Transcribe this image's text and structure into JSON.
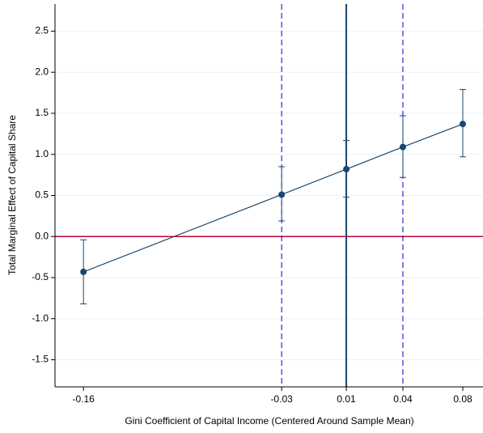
{
  "chart_data": {
    "type": "errorline",
    "xlabel": "Gini Coefficient of Capital Income (Centered Around Sample Mean)",
    "ylabel": "Total Marginal Effect of Capital Share",
    "series": [
      {
        "color": "#1a476f",
        "x": [
          -0.16,
          -0.0346,
          0.0063,
          0.0421,
          0.08
        ],
        "values": [
          -0.43,
          0.51,
          0.82,
          1.09,
          1.37
        ],
        "lower": [
          -0.82,
          0.19,
          0.48,
          0.72,
          0.97
        ],
        "upper": [
          -0.04,
          0.85,
          1.17,
          1.47,
          1.79
        ]
      }
    ],
    "xlim": [
      -0.178,
      0.0928
    ],
    "ylim": [
      -1.83,
      2.83
    ],
    "xticks": [
      -0.16,
      {
        "value": -0.0346,
        "label": "-0.03"
      },
      {
        "value": 0.0063,
        "label": "0.01"
      },
      {
        "value": 0.0421,
        "label": "0.04"
      },
      0.08
    ],
    "yticks": [
      -1.5,
      {
        "value": -1,
        "label": "-1.0"
      },
      -0.5,
      {
        "value": 0,
        "label": "0.0"
      },
      0.5,
      {
        "value": 1,
        "label": "1.0"
      },
      1.5,
      {
        "value": 2,
        "label": "2.0"
      },
      2.5
    ],
    "grid": true,
    "vlines": [
      {
        "value": -0.0346,
        "style": "dashed",
        "color": "#0000cc"
      },
      {
        "value": 0.0063,
        "style": "solid",
        "color": "#1a476f"
      },
      {
        "value": 0.0421,
        "style": "dashed",
        "color": "#0000cc"
      }
    ],
    "hlines": [
      {
        "value": 0,
        "color": "#c10534"
      }
    ]
  }
}
